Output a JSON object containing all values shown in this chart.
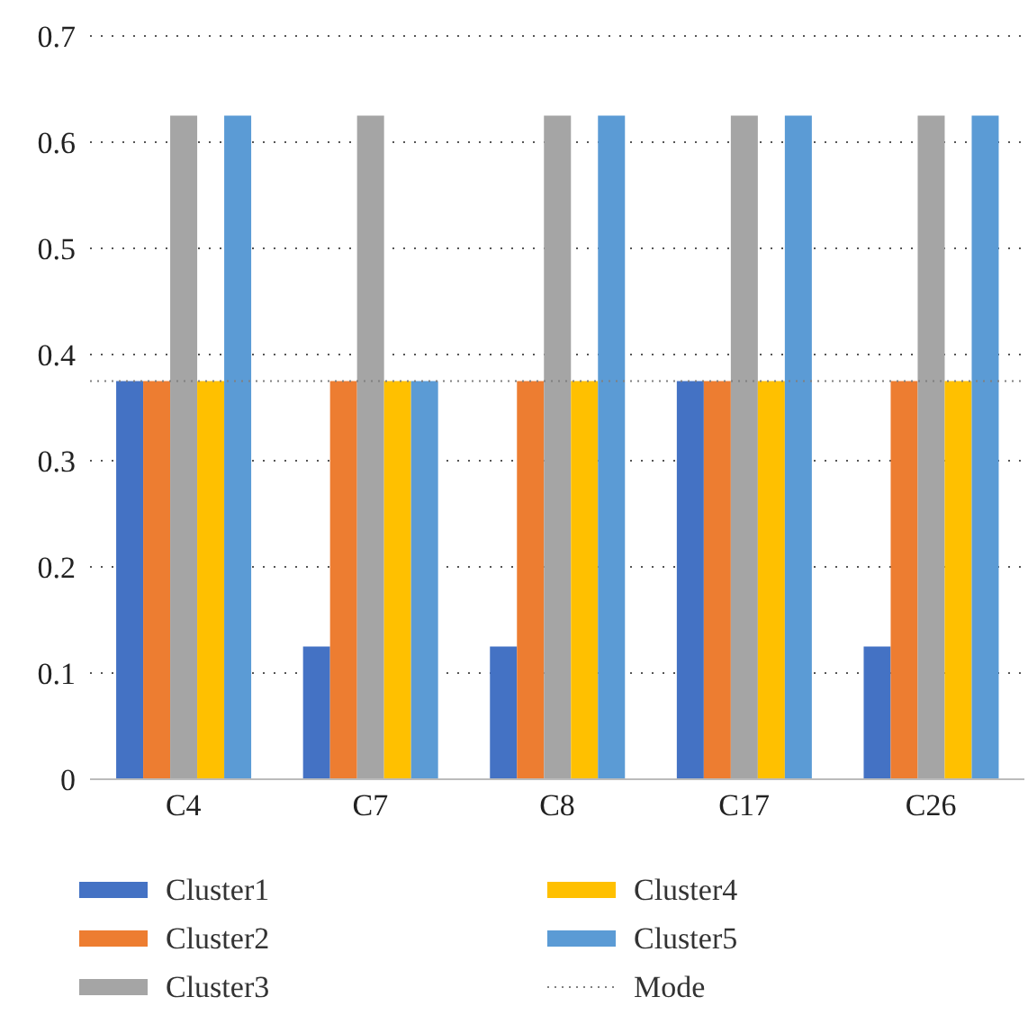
{
  "chart_data": {
    "type": "bar",
    "categories": [
      "C4",
      "C7",
      "C8",
      "C17",
      "C26"
    ],
    "series": [
      {
        "name": "Cluster1",
        "color": "#4472c4",
        "values": [
          0.375,
          0.125,
          0.125,
          0.375,
          0.125
        ]
      },
      {
        "name": "Cluster2",
        "color": "#ed7d31",
        "values": [
          0.375,
          0.375,
          0.375,
          0.375,
          0.375
        ]
      },
      {
        "name": "Cluster3",
        "color": "#a5a5a5",
        "values": [
          0.625,
          0.625,
          0.625,
          0.625,
          0.625
        ]
      },
      {
        "name": "Cluster4",
        "color": "#ffc000",
        "values": [
          0.375,
          0.375,
          0.375,
          0.375,
          0.375
        ]
      },
      {
        "name": "Cluster5",
        "color": "#5b9bd5",
        "values": [
          0.625,
          0.375,
          0.625,
          0.625,
          0.625
        ]
      }
    ],
    "ref_lines": [
      {
        "axis": "y",
        "value": 0.375,
        "label": "Mode",
        "color": "#808080",
        "line_style": "dotted"
      }
    ],
    "ylim": [
      0,
      0.7
    ],
    "yticks": [
      0,
      0.1,
      0.2,
      0.3,
      0.4,
      0.5,
      0.6,
      0.7
    ],
    "grid": "y",
    "legend": "bottom"
  }
}
